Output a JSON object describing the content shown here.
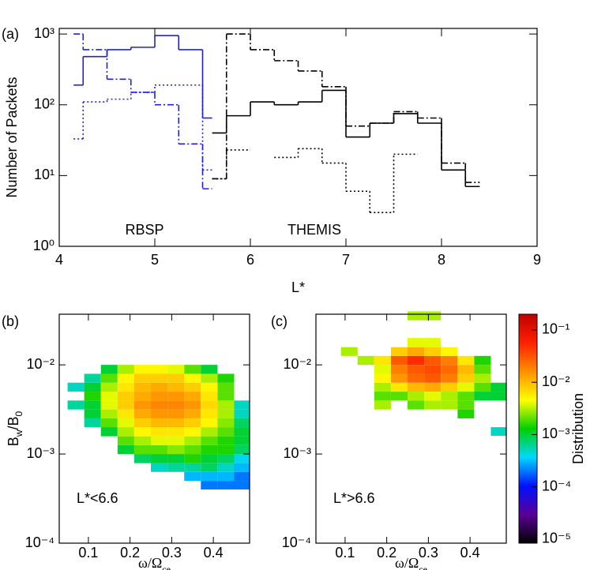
{
  "chart_data": [
    {
      "type": "histogram",
      "label": "(a)",
      "xlabel": "L*",
      "ylabel": "Number of Packets",
      "bins": [
        4.15,
        4.25,
        4.5,
        4.75,
        5,
        5.25,
        5.5,
        5.6,
        5.75,
        6,
        6.25,
        6.5,
        6.75,
        7,
        7.25,
        7.5,
        7.75,
        8,
        8.25,
        8.4
      ],
      "xlim": [
        4,
        9
      ],
      "xticks": [
        4,
        5,
        6,
        7,
        8,
        9
      ],
      "ylim": [
        1,
        1200
      ],
      "ylog": true,
      "yticks": [
        {
          "value": 1,
          "label": "10⁰"
        },
        {
          "value": 10,
          "label": "10¹"
        },
        {
          "value": 100,
          "label": "10²"
        },
        {
          "value": 1000,
          "label": "10³"
        }
      ],
      "series": [
        {
          "color": "#1f1fe0",
          "dash": "solid",
          "values": [
            190,
            480,
            600,
            650,
            950,
            600,
            65,
            null,
            null,
            null,
            null,
            null,
            null,
            null,
            null,
            null,
            null,
            null,
            null
          ]
        },
        {
          "color": "#1f1fe0",
          "dash": "dashdot",
          "values": [
            1000,
            600,
            230,
            150,
            100,
            28,
            6.5,
            null,
            null,
            null,
            null,
            null,
            null,
            null,
            null,
            null,
            null,
            null,
            null
          ]
        },
        {
          "color": "#1f1fe0",
          "dash": "dotted",
          "values": [
            33,
            110,
            120,
            150,
            190,
            190,
            12,
            null,
            null,
            null,
            null,
            null,
            null,
            null,
            null,
            null,
            null,
            null,
            null
          ]
        },
        {
          "color": "#000000",
          "dash": "solid",
          "values": [
            null,
            null,
            null,
            null,
            null,
            null,
            null,
            40,
            70,
            110,
            100,
            110,
            160,
            35,
            55,
            75,
            55,
            12,
            7
          ]
        },
        {
          "color": "#000000",
          "dash": "dashdot",
          "values": [
            null,
            null,
            null,
            null,
            null,
            null,
            null,
            9,
            1000,
            600,
            420,
            300,
            180,
            50,
            55,
            80,
            65,
            15,
            8
          ]
        },
        {
          "color": "#000000",
          "dash": "dotted",
          "values": [
            null,
            null,
            null,
            null,
            null,
            null,
            null,
            9,
            23,
            null,
            18,
            24,
            15,
            6,
            3,
            20,
            null,
            null,
            null
          ]
        }
      ],
      "annotations": [
        {
          "text": "RBSP",
          "color": "#1f1fe0"
        },
        {
          "text": "THEMIS",
          "color": "#000000"
        }
      ]
    },
    {
      "type": "heatmap",
      "label": "(b)",
      "xlabel": [
        "ω/Ω",
        "ce"
      ],
      "ylabel": [
        "B",
        "w",
        "/B",
        "0"
      ],
      "annotation": "L*<6.6",
      "xlim": [
        0.03,
        0.487
      ],
      "xticks": [
        0.1,
        0.2,
        0.3,
        0.4
      ],
      "ylim": [
        0.0001,
        0.037
      ],
      "ylog": true,
      "yticks": [
        {
          "value": 0.0001,
          "label": "10⁻⁴"
        },
        {
          "value": 0.001,
          "label": "10⁻³"
        },
        {
          "value": 0.01,
          "label": "10⁻²"
        }
      ],
      "x_bins": [
        0.05,
        0.09,
        0.13,
        0.17,
        0.21,
        0.25,
        0.29,
        0.33,
        0.37,
        0.41,
        0.45,
        0.487
      ],
      "y_bins": [
        0.0004,
        0.0005,
        0.00063,
        0.00079,
        0.001,
        0.00126,
        0.00158,
        0.002,
        0.00251,
        0.00316,
        0.00398,
        0.00501,
        0.00631,
        0.00794,
        0.01
      ],
      "values": [
        [
          null,
          null,
          null,
          null,
          null,
          null,
          null,
          null,
          0.0002,
          0.0002,
          0.0002
        ],
        [
          null,
          null,
          null,
          null,
          null,
          null,
          null,
          0.0003,
          0.0003,
          0.0003,
          0.0002
        ],
        [
          null,
          null,
          null,
          null,
          null,
          0.0005,
          0.0006,
          0.0006,
          0.0008,
          0.0005,
          0.0003
        ],
        [
          null,
          null,
          null,
          null,
          0.0008,
          0.001,
          0.001,
          0.0015,
          0.001,
          0.0008,
          0.0004
        ],
        [
          null,
          null,
          null,
          0.001,
          0.002,
          0.002,
          0.0025,
          0.002,
          0.0015,
          0.0015,
          0.0008
        ],
        [
          null,
          null,
          null,
          0.002,
          0.003,
          0.004,
          0.004,
          0.003,
          0.002,
          0.0015,
          0.001
        ],
        [
          null,
          null,
          0.001,
          0.003,
          0.005,
          0.006,
          0.006,
          0.005,
          0.003,
          0.002,
          0.001
        ],
        [
          null,
          0.0006,
          0.002,
          0.004,
          0.008,
          0.01,
          0.01,
          0.008,
          0.005,
          0.0025,
          0.0008
        ],
        [
          null,
          0.001,
          0.003,
          0.006,
          0.012,
          0.015,
          0.015,
          0.012,
          0.006,
          0.003,
          0.0005
        ],
        [
          0.0006,
          0.001,
          0.004,
          0.008,
          0.015,
          0.018,
          0.018,
          0.015,
          0.007,
          0.003,
          0.0005
        ],
        [
          null,
          0.0015,
          0.004,
          0.008,
          0.012,
          0.015,
          0.015,
          0.012,
          0.006,
          0.002,
          null
        ],
        [
          0.0005,
          0.001,
          0.003,
          0.006,
          0.01,
          0.012,
          0.01,
          0.008,
          0.005,
          0.002,
          null
        ],
        [
          null,
          0.0006,
          0.002,
          0.005,
          0.008,
          0.008,
          0.008,
          0.005,
          0.003,
          0.0015,
          null
        ],
        [
          null,
          null,
          0.001,
          0.003,
          0.005,
          0.005,
          0.004,
          0.002,
          0.001,
          null,
          null
        ]
      ]
    },
    {
      "type": "heatmap",
      "label": "(c)",
      "xlabel": [
        "ω/Ω",
        "ce"
      ],
      "annotation": "L*>6.6",
      "xlim": [
        0.03,
        0.487
      ],
      "xticks": [
        0.1,
        0.2,
        0.3,
        0.4
      ],
      "ylim": [
        0.0001,
        0.037
      ],
      "ylog": true,
      "yticks": [
        {
          "value": 0.0001,
          "label": "10⁻⁴"
        },
        {
          "value": 0.001,
          "label": "10⁻³"
        },
        {
          "value": 0.01,
          "label": "10⁻²"
        }
      ],
      "x_bins": [
        0.05,
        0.09,
        0.13,
        0.17,
        0.21,
        0.25,
        0.29,
        0.33,
        0.37,
        0.41,
        0.45,
        0.487
      ],
      "y_bins": [
        0.0016,
        0.002,
        0.00251,
        0.00316,
        0.00398,
        0.00501,
        0.00631,
        0.00794,
        0.01,
        0.0126,
        0.0158,
        0.02,
        0.0251,
        0.0316,
        0.0398
      ],
      "values": [
        [
          null,
          null,
          null,
          null,
          null,
          null,
          null,
          null,
          null,
          null,
          0.0005
        ],
        [
          null,
          null,
          null,
          null,
          null,
          null,
          null,
          null,
          null,
          null,
          null
        ],
        [
          null,
          null,
          null,
          null,
          null,
          null,
          null,
          null,
          0.0015,
          null,
          null
        ],
        [
          null,
          null,
          null,
          0.003,
          null,
          0.002,
          0.003,
          0.003,
          0.002,
          null,
          null
        ],
        [
          null,
          null,
          null,
          0.002,
          0.002,
          0.003,
          0.004,
          0.003,
          0.002,
          0.001,
          0.001
        ],
        [
          null,
          null,
          null,
          0.003,
          0.006,
          0.01,
          0.012,
          0.008,
          0.004,
          0.002,
          0.001
        ],
        [
          null,
          null,
          null,
          0.005,
          0.015,
          0.025,
          0.03,
          0.02,
          0.008,
          0.003,
          null
        ],
        [
          null,
          null,
          null,
          0.004,
          0.02,
          0.03,
          0.035,
          0.025,
          0.01,
          0.002,
          null
        ],
        [
          null,
          null,
          0.003,
          0.006,
          0.03,
          0.05,
          0.03,
          0.02,
          0.006,
          0.0015,
          null
        ],
        [
          null,
          0.003,
          null,
          null,
          0.008,
          0.012,
          0.008,
          0.005,
          null,
          null,
          null
        ],
        [
          null,
          null,
          null,
          null,
          null,
          0.004,
          0.004,
          null,
          null,
          null,
          null
        ],
        [
          null,
          null,
          null,
          null,
          null,
          null,
          null,
          null,
          null,
          null,
          null
        ],
        [
          null,
          null,
          null,
          null,
          null,
          null,
          null,
          null,
          null,
          null,
          null
        ],
        [
          null,
          null,
          null,
          null,
          null,
          0.003,
          0.003,
          null,
          null,
          null,
          null
        ]
      ],
      "colorbar": {
        "label": "Distribution",
        "lim": [
          8.4e-06,
          0.2
        ],
        "ticks": [
          {
            "value": 1e-05,
            "label": "10⁻⁵"
          },
          {
            "value": 0.0001,
            "label": "10⁻⁴"
          },
          {
            "value": 0.001,
            "label": "10⁻³"
          },
          {
            "value": 0.01,
            "label": "10⁻²"
          },
          {
            "value": 0.1,
            "label": "10⁻¹"
          }
        ],
        "colormap": [
          "#000000",
          "#5a0096",
          "#0010ff",
          "#00d8ff",
          "#00d000",
          "#ffff00",
          "#ff9000",
          "#ff2000",
          "#c00000"
        ]
      }
    }
  ]
}
